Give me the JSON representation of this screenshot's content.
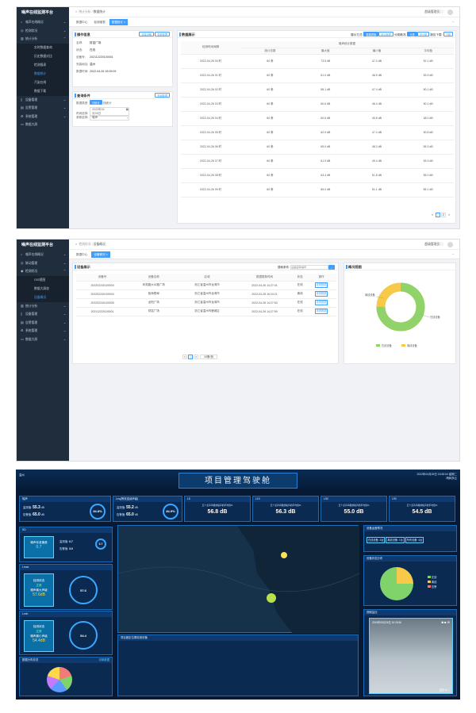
{
  "brand": "噪声在线监测平台",
  "menu": {
    "home": "噪声在线概况",
    "monitor": "检测状况",
    "stats": "统计分析",
    "device": "设备管理",
    "alarm": "告警管理",
    "system": "系统管理",
    "screen": "数据大屏",
    "linkage": "联动管理"
  },
  "sub1": [
    "实时数据查询",
    "历史数据对比",
    "检测报表",
    "数据统计",
    "污染在线",
    "数据下载"
  ],
  "sub2": [
    "GIS视图",
    "数据大屏态",
    "设备概况"
  ],
  "s1": {
    "crumb1": "统计分析",
    "crumb2": "数据统计",
    "user": "超级管理员",
    "tabs": [
      "数据中心",
      "检测报表",
      "数据统计 ×"
    ],
    "op": {
      "title": "操作信息",
      "btn1": "选择设备",
      "btn2": "查看数据",
      "rows": [
        [
          "名称:",
          "财富广场"
        ],
        [
          "状态:",
          "在线"
        ],
        [
          "设备号:",
          "202112220100001"
        ],
        [
          "安装地址:",
          "温州"
        ],
        [
          "数据时间:",
          "2022-04-26 15:05:09"
        ]
      ]
    },
    "q": {
      "title": "查询条件",
      "btn": "查询数据",
      "r1l": "数据类型:",
      "opt1": "日统计",
      "opt2": "月统计",
      "r2l": "时间选择:",
      "date": "2022年04月26日",
      "r3l": "参数选择:",
      "param": "噪声"
    },
    "dv": {
      "title": "数据展示",
      "ctl1": "展示方式:",
      "b1": "数据表格",
      "b2": "统计报表",
      "ctl2": "分类概况:",
      "b3": "分类",
      "b4": "不分类",
      "ctl3": "报告下载:",
      "b5": "下载",
      "h_time": "检测时间间隔",
      "h_group": "噪声统计数据",
      "cols": [
        "统计总数",
        "最大值",
        "最小值",
        "平均值"
      ],
      "rows": [
        [
          "2022-04-26 00 时",
          "60 条",
          "73.5 dB",
          "47.4 dB",
          "52.1 dB"
        ],
        [
          "2022-04-26 01 时",
          "60 条",
          "61.0 dB",
          "48.5 dB",
          "53.9 dB"
        ],
        [
          "2022-04-26 02 时",
          "60 条",
          "58.1 dB",
          "47.4 dB",
          "50.1 dB"
        ],
        [
          "2022-04-26 03 时",
          "60 条",
          "60.6 dB",
          "46.4 dB",
          "50.1 dB"
        ],
        [
          "2022-04-26 04 时",
          "60 条",
          "60.6 dB",
          "45.8 dB",
          "48.0 dB"
        ],
        [
          "2022-04-26 05 时",
          "60 条",
          "62.9 dB",
          "47.4 dB",
          "50.8 dB"
        ],
        [
          "2022-04-26 06 时",
          "60 条",
          "65.0 dB",
          "48.3 dB",
          "55.3 dB"
        ],
        [
          "2022-04-26 07 时",
          "60 条",
          "61.9 dB",
          "49.4 dB",
          "53.9 dB"
        ],
        [
          "2022-04-26 08 时",
          "60 条",
          "63.4 dB",
          "51.8 dB",
          "55.0 dB"
        ],
        [
          "2022-04-26 09 时",
          "60 条",
          "65.0 dB",
          "51.1 dB",
          "55.1 dB"
        ]
      ],
      "pages": [
        "<",
        "1",
        "2",
        ">"
      ]
    }
  },
  "s2": {
    "crumb1": "检测状况",
    "crumb2": "设备概况",
    "tabs": [
      "数据中心",
      "设备概况 ×"
    ],
    "list": {
      "title": "设备展示",
      "search_label": "搜索条件:",
      "search_ph": "设备名称/编号",
      "cols": [
        "设备号",
        "设备名称",
        "区域",
        "数据更新时间",
        "状态",
        "操作"
      ],
      "rows": [
        [
          "202202240100003",
          "科苑路大众路广场",
          "浙江省温州市龙湾市",
          "2022-04-26 14:27:41",
          "在线",
          "查看数据"
        ],
        [
          "202202240100004",
          "瓯海梧埠",
          "浙江省温州市龙湾市",
          "2022-03-28 16:24:21",
          "离线",
          "查看数据"
        ],
        [
          "202202240100005",
          "龙阳广场",
          "浙江省温州市龙湾市",
          "2022-04-26 14:27:53",
          "在线",
          "查看数据"
        ],
        [
          "202112220100001",
          "财富广场",
          "浙江省温州市鹿城区",
          "2022-04-26 14:27:59",
          "在线",
          "查看数据"
        ]
      ],
      "pager": [
        "<",
        "1",
        ">",
        "10条/页"
      ]
    },
    "pie": {
      "title": "概况视图",
      "l1": "在线设备",
      "l2": "离线设备",
      "legend1": "在线设备",
      "legend2": "离线设备",
      "online": 0.75,
      "c1": "#8fd36a",
      "c2": "#f7c948"
    }
  },
  "s3": {
    "title": "项目管理驾驶舱",
    "time": "2022年04月26日 15:35:04 星期二",
    "loc": "温州",
    "weather": "晴转多云",
    "mods": [
      {
        "h": "噪声",
        "a": "监测值:",
        "av": "55.3",
        "b": "告警值:",
        "bv": "65.0",
        "u": "dB",
        "pct": "84.8%"
      },
      {
        "h": "Leq(等效连续声级)",
        "a": "监测值:",
        "av": "55.2",
        "b": "告警值:",
        "bv": "65.0",
        "u": "dB",
        "pct": "84.9%"
      }
    ],
    "ls": [
      {
        "h": "L5",
        "t": "五个点声声级的噪声的平均值%"
      },
      {
        "h": "L10",
        "t": "五个点声声级的噪声的平均值%"
      },
      {
        "h": "L50",
        "t": "五个点声声级的噪声的平均值%"
      },
      {
        "h": "L90",
        "t": "五个点声声级的噪声的平均值%"
      }
    ],
    "lsv": [
      "56.8 dB",
      "56.3 dB",
      "55.0 dB",
      "54.5 dB"
    ],
    "sd": {
      "h": "SD",
      "tile": "噪声标准偏差",
      "tv": "0.7",
      "a": "监测值:",
      "av": "0.7",
      "b": "告警值:",
      "bv": "3.0",
      "ring": "0.7"
    },
    "lmax": {
      "h": "Lmax",
      "s1": "检测状态",
      "s2": "正常",
      "s3": "噪声最大声级",
      "v": "57.6dB",
      "g": "57.6"
    },
    "lmin": {
      "h": "Lmin",
      "s1": "检测状态",
      "s2": "正常",
      "s3": "噪声最小声级",
      "v": "54.4dB",
      "g": "54.4"
    },
    "dist": {
      "h": "数据分布总览",
      "link": "切换数据"
    },
    "map_foot": "项目固定位置检测设备",
    "dstat": {
      "h": "设备运营情况",
      "a": "在线设备: 3台",
      "b": "离线设备: 1台",
      "c": "所有设备: 4台"
    },
    "dalarm": {
      "h": "设备状态分布",
      "l1": "在线",
      "l2": "离线",
      "l3": "告警"
    },
    "video": {
      "h": "视频监控",
      "ts": "2019年05月26日 10:28:36",
      "cam": "监控"
    }
  }
}
